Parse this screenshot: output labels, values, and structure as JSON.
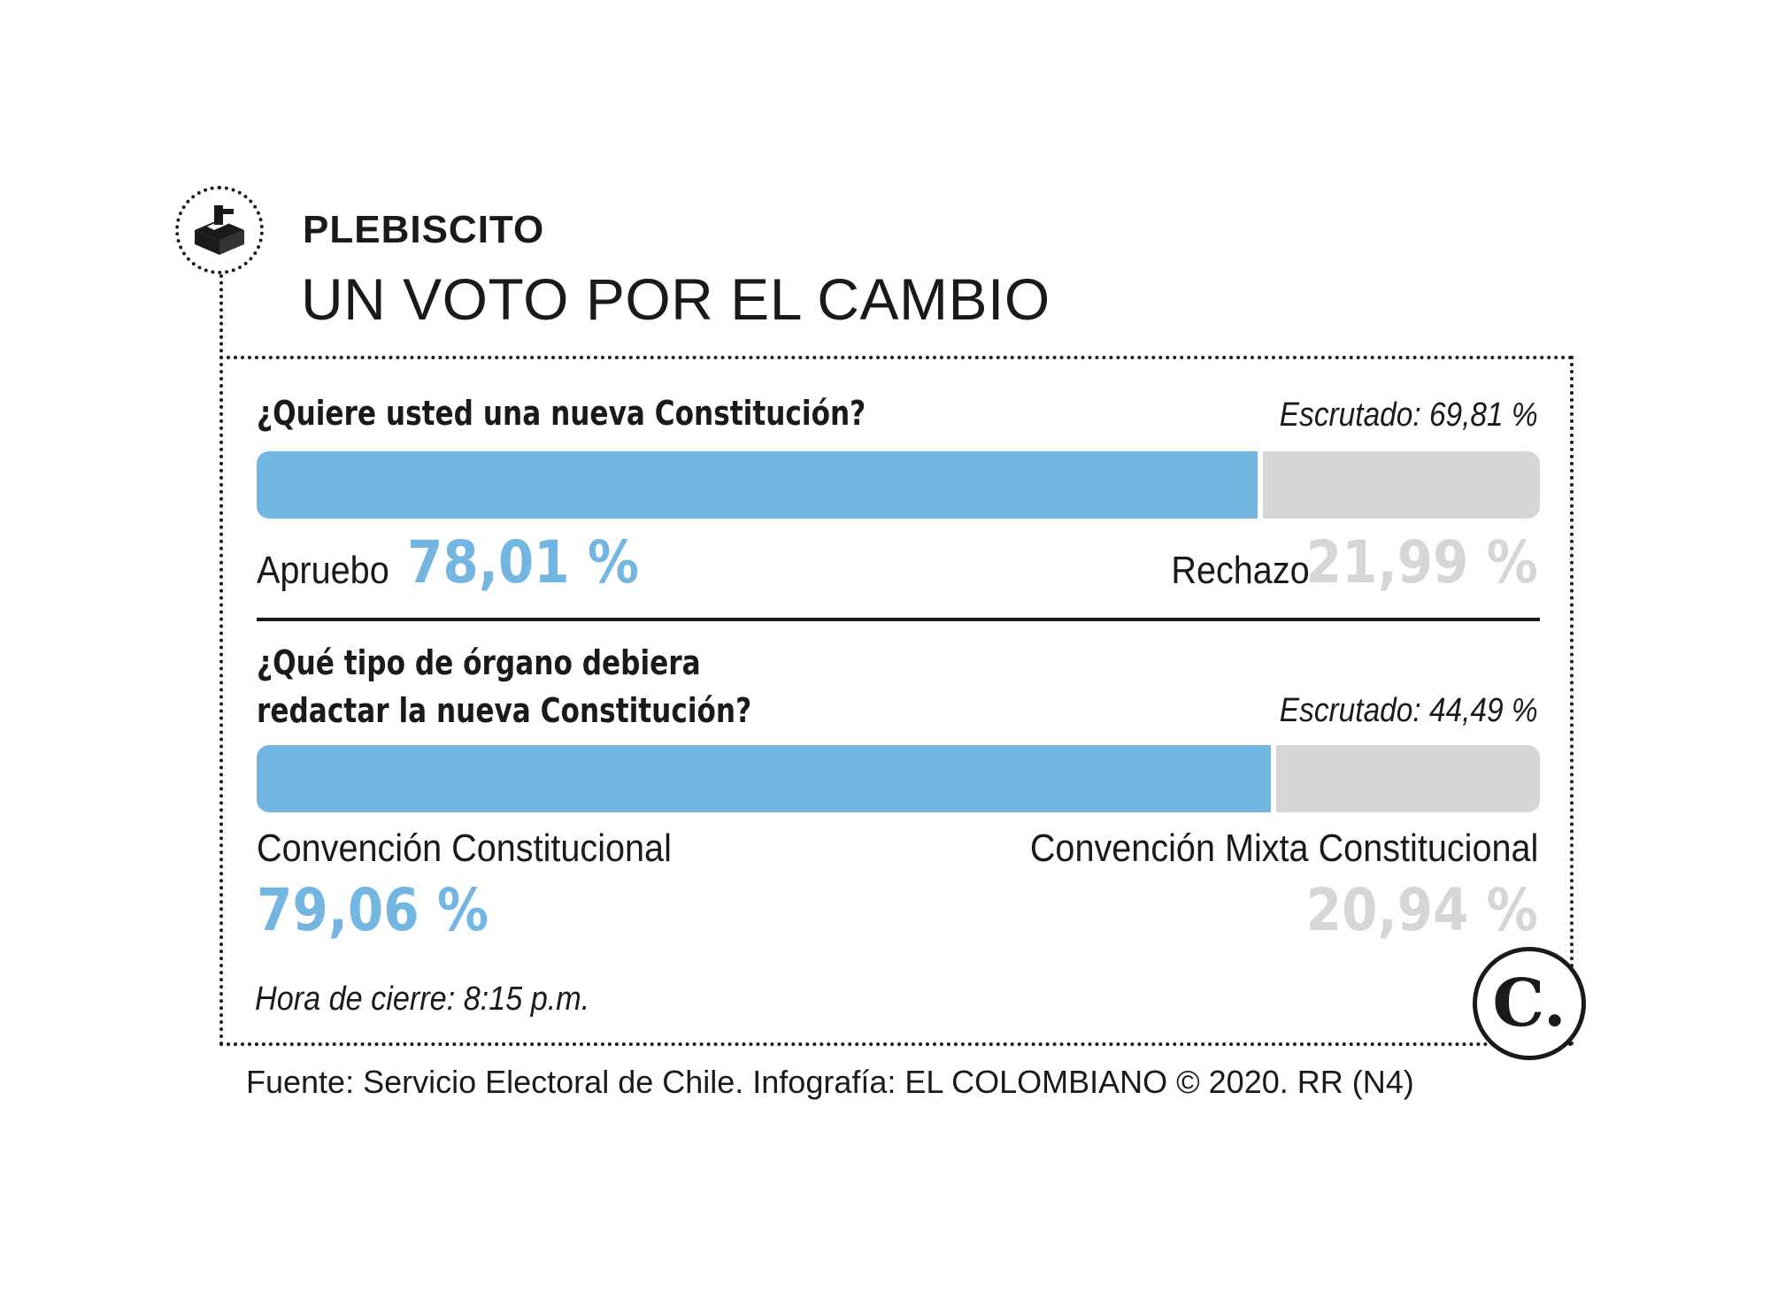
{
  "header": {
    "kicker": "PLEBISCITO",
    "title": "UN VOTO POR EL CAMBIO",
    "icon": "ballot-box-icon"
  },
  "colors": {
    "approve": "#74b6e2",
    "reject": "#d6d6d6",
    "text": "#1a1a1a"
  },
  "chart_data": [
    {
      "type": "bar",
      "orientation": "horizontal-stacked",
      "title": "¿Quiere usted una nueva Constitución?",
      "escrutado": "Escrutado: 69,81 %",
      "series": [
        {
          "name": "Apruebo",
          "value": 78.01,
          "label": "78,01 %",
          "color": "#74b6e2"
        },
        {
          "name": "Rechazo",
          "value": 21.99,
          "label": "21,99 %",
          "color": "#d6d6d6"
        }
      ]
    },
    {
      "type": "bar",
      "orientation": "horizontal-stacked",
      "title_lines": [
        "¿Qué tipo de órgano debiera",
        "redactar la nueva Constitución?"
      ],
      "escrutado": "Escrutado: 44,49 %",
      "series": [
        {
          "name": "Convención Constitucional",
          "value": 79.06,
          "label": "79,06 %",
          "color": "#74b6e2"
        },
        {
          "name": "Convención Mixta Constitucional",
          "value": 20.94,
          "label": "20,94 %",
          "color": "#d6d6d6"
        }
      ]
    }
  ],
  "closing_time": "Hora de cierre: 8:15 p.m.",
  "logo_letter": "C.",
  "footer": "Fuente: Servicio Electoral de Chile. Infografía: EL COLOMBIANO © 2020. RR (N4)"
}
